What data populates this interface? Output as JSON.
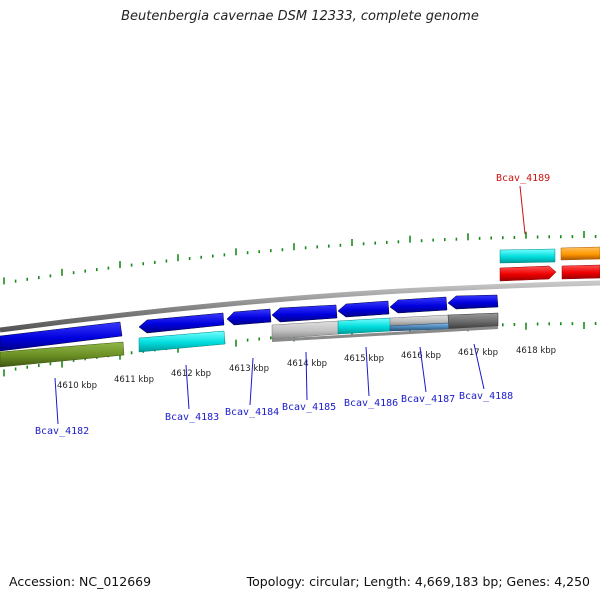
{
  "title": "Beutenbergia cavernae DSM 12333, complete genome",
  "footer": {
    "accession": "Accession: NC_012669",
    "summary": "Topology: circular; Length: 4,669,183 bp; Genes: 4,250"
  },
  "colors": {
    "backbone": "#8a8a8a",
    "tick": "#1a8a1a",
    "gene_label_blue": "#1a1acc",
    "gene_label_red": "#cc1111"
  },
  "kbp_labels": [
    "4610 kbp",
    "4611 kbp",
    "4612 kbp",
    "4613 kbp",
    "4614 kbp",
    "4615 kbp",
    "4616 kbp",
    "4617 kbp",
    "4618 kbp"
  ],
  "gene_labels": [
    {
      "name": "Bcav_4182",
      "color": "blue"
    },
    {
      "name": "Bcav_4183",
      "color": "blue"
    },
    {
      "name": "Bcav_4184",
      "color": "blue"
    },
    {
      "name": "Bcav_4185",
      "color": "blue"
    },
    {
      "name": "Bcav_4186",
      "color": "blue"
    },
    {
      "name": "Bcav_4187",
      "color": "blue"
    },
    {
      "name": "Bcav_4188",
      "color": "blue"
    },
    {
      "name": "Bcav_4189",
      "color": "red"
    }
  ]
}
